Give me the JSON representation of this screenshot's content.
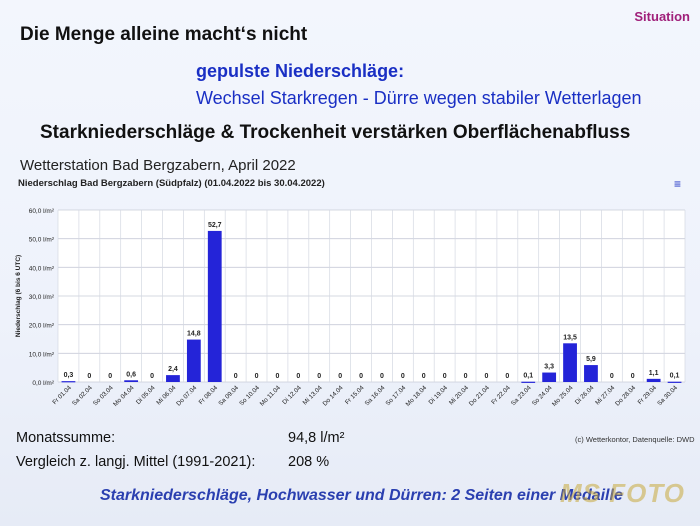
{
  "slide": {
    "corner": "Situation",
    "title": "Die Menge alleine macht‘s nicht",
    "subtitle1": "gepulste Niederschläge:",
    "subtitle2": "Wechsel Starkregen - Dürre wegen stabiler Wetterlagen",
    "heading": "Starkniederschläge & Trockenheit verstärken Oberflächenabfluss",
    "station_title": "Wetterstation Bad Bergzabern, April 2022",
    "footer": "Starkniederschläge, Hochwasser und Dürren: 2 Seiten einer Medaille",
    "watermark": "MS FOTO"
  },
  "stats": {
    "month_sum_label": "Monatssumme:",
    "month_sum_value": "94,8 l/m²",
    "comparison_label": "Vergleich z. langj. Mittel (1991-2021):",
    "comparison_value": "208 %"
  },
  "chart_data": {
    "type": "bar",
    "title": "Niederschlag Bad Bergzabern (Südpfalz) (01.04.2022 bis 30.04.2022)",
    "ylabel": "Niederschlag (6 bis 6 UTC)",
    "ylim": [
      0,
      60
    ],
    "yticks": [
      "0,0 l/m²",
      "10,0 l/m²",
      "20,0 l/m²",
      "30,0 l/m²",
      "40,0 l/m²",
      "50,0 l/m²",
      "60,0 l/m²"
    ],
    "grid": true,
    "bar_color": "#2424d8",
    "credit": "(c) Wetterkontor, Datenquelle: DWD",
    "categories": [
      "Fr 01.04",
      "Sa 02.04",
      "So 03.04",
      "Mo 04.04",
      "Di 05.04",
      "Mi 06.04",
      "Do 07.04",
      "Fr 08.04",
      "Sa 09.04",
      "So 10.04",
      "Mo 11.04",
      "Di 12.04",
      "Mi 13.04",
      "Do 14.04",
      "Fr 15.04",
      "Sa 16.04",
      "So 17.04",
      "Mo 18.04",
      "Di 19.04",
      "Mi 20.04",
      "Do 21.04",
      "Fr 22.04",
      "Sa 23.04",
      "So 24.04",
      "Mo 25.04",
      "Di 26.04",
      "Mi 27.04",
      "Do 28.04",
      "Fr 29.04",
      "Sa 30.04"
    ],
    "values": [
      0.3,
      0,
      0,
      0.6,
      0,
      2.4,
      14.8,
      52.7,
      0,
      0,
      0,
      0,
      0,
      0,
      0,
      0,
      0,
      0,
      0,
      0,
      0,
      0,
      0.1,
      3.3,
      13.5,
      5.9,
      0,
      0,
      1.1,
      0.1
    ],
    "labels": [
      "0,3",
      "0",
      "0",
      "0,6",
      "0",
      "2,4",
      "14,8",
      "52,7",
      "0",
      "0",
      "0",
      "0",
      "0",
      "0",
      "0",
      "0",
      "0",
      "0",
      "0",
      "0",
      "0",
      "0",
      "0,1",
      "3,3",
      "13,5",
      "5,9",
      "0",
      "0",
      "1,1",
      "0,1"
    ]
  }
}
